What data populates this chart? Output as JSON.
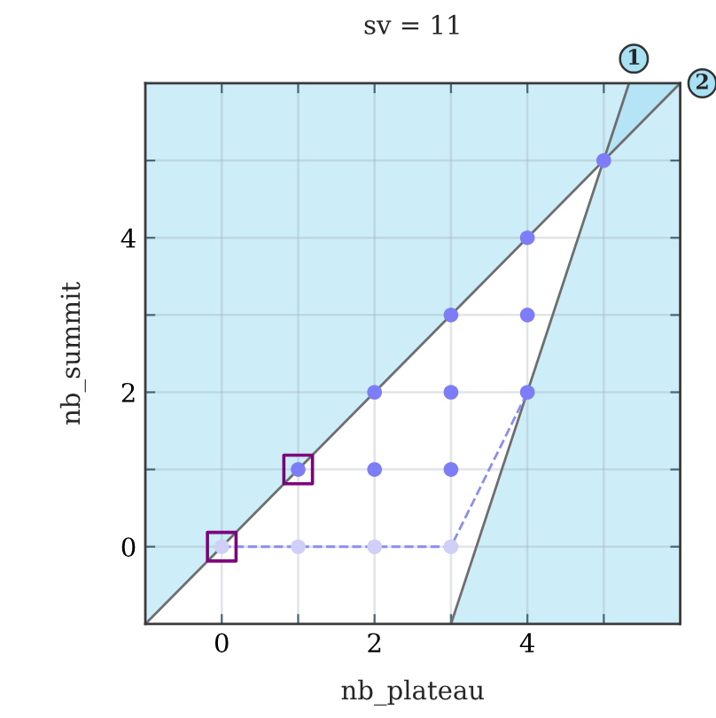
{
  "chart_data": {
    "type": "scatter",
    "title": "sv = 11",
    "xlabel": "nb_plateau",
    "ylabel": "nb_summit",
    "xlim": [
      -1,
      6
    ],
    "ylim": [
      -1,
      6
    ],
    "xticks": [
      0,
      {
        "value": 1,
        "label": null
      },
      2,
      {
        "value": 3,
        "label": null
      },
      4,
      {
        "value": 5,
        "label": null
      }
    ],
    "yticks": [
      0,
      {
        "value": 1,
        "label": null
      },
      2,
      {
        "value": 3,
        "label": null
      },
      4,
      {
        "value": 5,
        "label": null
      }
    ],
    "grid": true,
    "series": [
      {
        "type": "line",
        "color": "#9bdbf2",
        "x": [
          -1,
          6
        ],
        "values": [
          null,
          null
        ],
        "lower": [
          -1,
          6
        ],
        "upper": [
          6,
          6
        ]
      },
      {
        "type": "line",
        "color": "#9bdbf2",
        "x": [
          3,
          5.33,
          6
        ],
        "values": [
          null,
          null,
          null
        ],
        "lower": [
          -1,
          -1,
          -1
        ],
        "upper": [
          -1,
          6,
          6
        ]
      },
      {
        "type": "line",
        "color": "#6e6e6e",
        "x": [
          3,
          5.33
        ],
        "values": [
          -1,
          6
        ]
      },
      {
        "type": "line",
        "color": "#6e6e6e",
        "x": [
          -1,
          6
        ],
        "values": [
          -1,
          6
        ]
      },
      {
        "type": "line",
        "color": "#8c8cf5",
        "line_style": "dashed",
        "x": [
          0,
          3,
          4
        ],
        "values": [
          0,
          0,
          2
        ]
      },
      {
        "color": "#cfcff8",
        "marker": "circle",
        "x": [
          0,
          1,
          2,
          3
        ],
        "values": [
          0,
          0,
          0,
          0
        ]
      },
      {
        "color": "#7d7df7",
        "marker": "circle",
        "x": [
          1,
          2,
          2,
          3,
          3,
          3,
          4,
          4,
          4,
          5
        ],
        "values": [
          1,
          1,
          2,
          1,
          2,
          3,
          2,
          3,
          4,
          5
        ]
      },
      {
        "color": "#800080",
        "marker": "square",
        "x": [
          0,
          1
        ],
        "values": [
          0,
          1
        ]
      }
    ],
    "annotations": [
      {
        "text": "1",
        "x": 5.33,
        "y": 6
      },
      {
        "text": "2",
        "x": 6,
        "y": 6
      }
    ]
  }
}
